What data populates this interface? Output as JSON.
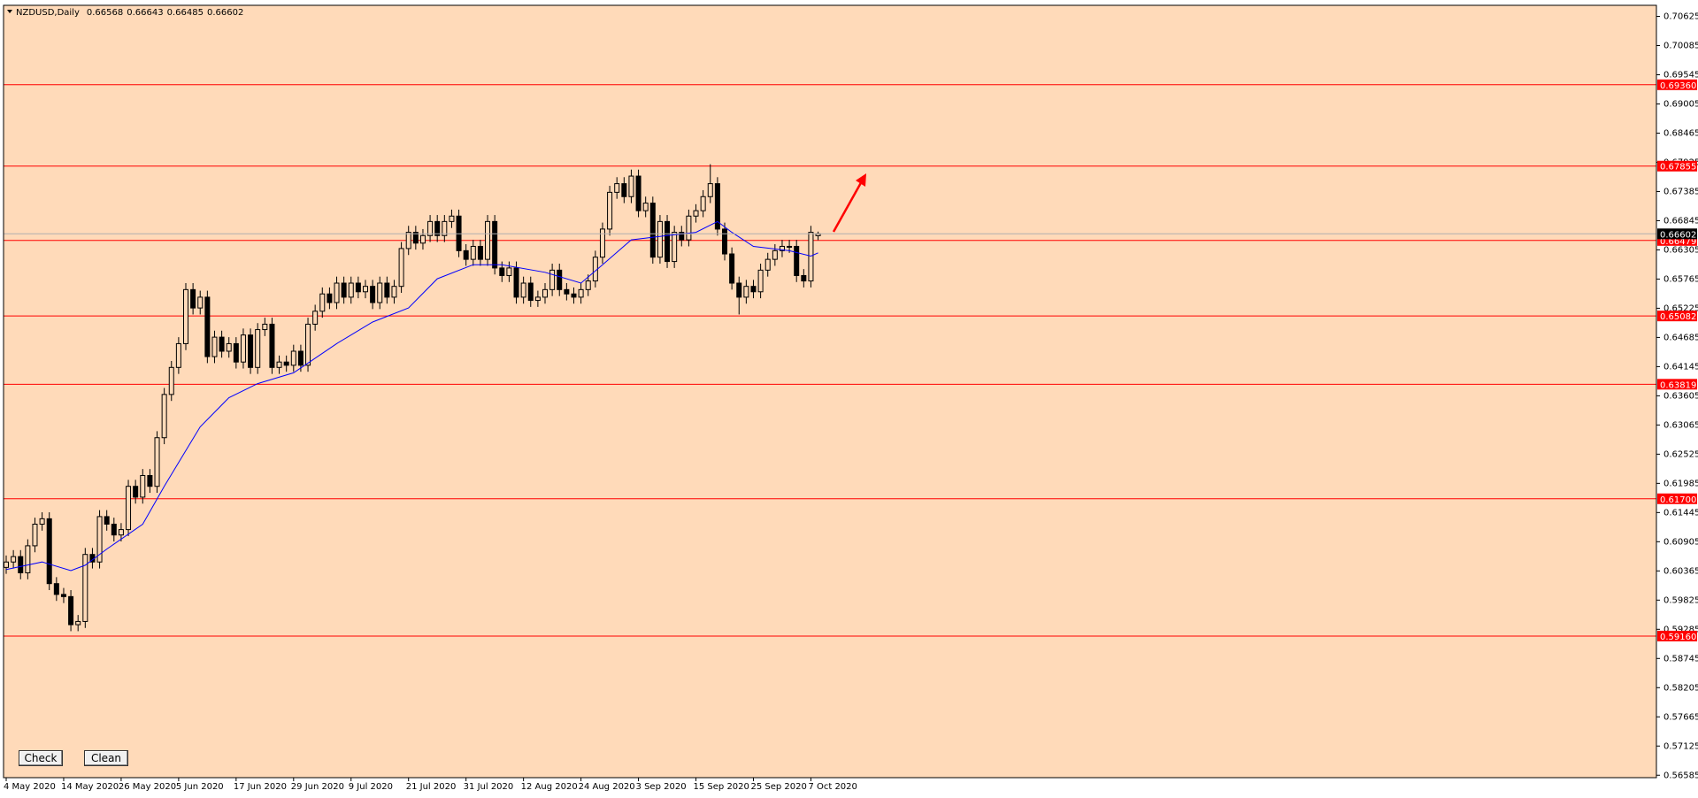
{
  "chart_data": {
    "type": "candlestick",
    "title": "NZDUSD,Daily",
    "categories": [
      "4 May 2020",
      null,
      null,
      null,
      null,
      null,
      null,
      null,
      "14 May 2020",
      null,
      null,
      null,
      null,
      null,
      null,
      null,
      "26 May 2020",
      null,
      null,
      null,
      null,
      null,
      null,
      null,
      "5 Jun 2020",
      null,
      null,
      null,
      null,
      null,
      null,
      null,
      "17 Jun 2020",
      null,
      null,
      null,
      null,
      null,
      null,
      null,
      "29 Jun 2020",
      null,
      null,
      null,
      null,
      null,
      null,
      null,
      "9 Jul 2020",
      null,
      null,
      null,
      null,
      null,
      null,
      null,
      "21 Jul 2020",
      null,
      null,
      null,
      null,
      null,
      null,
      null,
      "31 Jul 2020",
      null,
      null,
      null,
      null,
      null,
      null,
      null,
      "12 Aug 2020",
      null,
      null,
      null,
      null,
      null,
      null,
      null,
      "24 Aug 2020",
      null,
      null,
      null,
      null,
      null,
      null,
      null,
      "3 Sep 2020",
      null,
      null,
      null,
      null,
      null,
      null,
      null,
      "15 Sep 2020",
      null,
      null,
      null,
      null,
      null,
      null,
      null,
      "25 Sep 2020",
      null,
      null,
      null,
      null,
      null,
      null,
      null,
      "7 Oct 2020",
      null
    ],
    "open": [
      0.6043,
      0.6053,
      0.6063,
      0.6033,
      0.6083,
      0.6123,
      0.6133,
      0.6013,
      0.5993,
      0.5989,
      0.5937,
      0.5943,
      0.6067,
      0.6053,
      0.6137,
      0.6123,
      0.6103,
      0.6113,
      0.6193,
      0.6173,
      0.6213,
      0.6193,
      0.6283,
      0.6363,
      0.6413,
      0.6457,
      0.6557,
      0.6523,
      0.6543,
      0.6433,
      0.6469,
      0.6443,
      0.6457,
      0.6423,
      0.6473,
      0.6413,
      0.6483,
      0.6493,
      0.6413,
      0.6423,
      0.6417,
      0.6443,
      0.6417,
      0.6493,
      0.6517,
      0.6549,
      0.6533,
      0.6569,
      0.6543,
      0.6569,
      0.6553,
      0.6563,
      0.6533,
      0.6569,
      0.6543,
      0.6563,
      0.6633,
      0.6663,
      0.6643,
      0.6657,
      0.6683,
      0.6657,
      0.6683,
      0.6693,
      0.6629,
      0.6613,
      0.6637,
      0.6613,
      0.6683,
      0.6597,
      0.6583,
      0.6597,
      0.6543,
      0.6569,
      0.6537,
      0.6543,
      0.6557,
      0.6593,
      0.6557,
      0.6549,
      0.6543,
      0.6557,
      0.6573,
      0.6617,
      0.6669,
      0.6737,
      0.6753,
      0.6729,
      0.6767,
      0.6703,
      0.6717,
      0.6617,
      0.6683,
      0.6609,
      0.6663,
      0.6649,
      0.6693,
      0.6703,
      0.6729,
      0.6753,
      0.6669,
      0.6623,
      0.6569,
      0.6543,
      0.6563,
      0.6553,
      0.6593,
      0.6613,
      0.6629,
      0.6637,
      0.6637,
      0.6583,
      0.6573,
      0.66568
    ],
    "high": [
      0.6065,
      0.6075,
      0.6075,
      0.6095,
      0.6135,
      0.6145,
      0.6145,
      0.6025,
      0.6005,
      0.6001,
      0.5955,
      0.6079,
      0.6079,
      0.6149,
      0.6149,
      0.6135,
      0.6125,
      0.6205,
      0.6205,
      0.6225,
      0.6225,
      0.6295,
      0.6375,
      0.6425,
      0.6469,
      0.6569,
      0.6569,
      0.6555,
      0.6555,
      0.6481,
      0.6481,
      0.6469,
      0.6469,
      0.6485,
      0.6485,
      0.6495,
      0.6505,
      0.6505,
      0.6435,
      0.6435,
      0.6455,
      0.6455,
      0.6505,
      0.6529,
      0.6561,
      0.6561,
      0.6581,
      0.6581,
      0.6581,
      0.6581,
      0.6575,
      0.6575,
      0.6581,
      0.6581,
      0.6575,
      0.6645,
      0.6675,
      0.6675,
      0.6669,
      0.6695,
      0.6695,
      0.6695,
      0.6705,
      0.6705,
      0.6641,
      0.6649,
      0.6649,
      0.6695,
      0.6695,
      0.6609,
      0.6609,
      0.6609,
      0.6581,
      0.6581,
      0.6555,
      0.6569,
      0.6605,
      0.6605,
      0.6569,
      0.6561,
      0.6569,
      0.6585,
      0.6629,
      0.6681,
      0.6749,
      0.6765,
      0.6765,
      0.6779,
      0.6779,
      0.6729,
      0.6729,
      0.6695,
      0.6695,
      0.6675,
      0.6675,
      0.6705,
      0.6715,
      0.6741,
      0.6789,
      0.6765,
      0.6681,
      0.6635,
      0.6581,
      0.6575,
      0.6575,
      0.6605,
      0.6625,
      0.6641,
      0.6649,
      0.6649,
      0.6649,
      0.6595,
      0.6675,
      0.66643
    ],
    "low": [
      0.6031,
      0.6041,
      0.6021,
      0.6021,
      0.6071,
      0.6111,
      0.6001,
      0.5981,
      0.5977,
      0.5925,
      0.5925,
      0.5931,
      0.6041,
      0.6041,
      0.6111,
      0.6091,
      0.6091,
      0.6101,
      0.6161,
      0.6161,
      0.6181,
      0.6181,
      0.6271,
      0.6351,
      0.6401,
      0.6445,
      0.6511,
      0.6511,
      0.6421,
      0.6421,
      0.6431,
      0.6431,
      0.6411,
      0.6411,
      0.6401,
      0.6401,
      0.6471,
      0.6401,
      0.6401,
      0.6405,
      0.6405,
      0.6405,
      0.6405,
      0.6481,
      0.6505,
      0.6521,
      0.6521,
      0.6531,
      0.6531,
      0.6541,
      0.6541,
      0.6521,
      0.6521,
      0.6531,
      0.6531,
      0.6551,
      0.6621,
      0.6631,
      0.6631,
      0.6645,
      0.6645,
      0.6645,
      0.6671,
      0.6617,
      0.6601,
      0.6601,
      0.6601,
      0.6601,
      0.6585,
      0.6571,
      0.6571,
      0.6531,
      0.6531,
      0.6525,
      0.6525,
      0.6531,
      0.6545,
      0.6545,
      0.6537,
      0.6531,
      0.6531,
      0.6545,
      0.6561,
      0.6605,
      0.6657,
      0.6725,
      0.6717,
      0.6717,
      0.6691,
      0.6691,
      0.6605,
      0.6605,
      0.6597,
      0.6597,
      0.6637,
      0.6637,
      0.6681,
      0.6691,
      0.6717,
      0.6657,
      0.6611,
      0.6557,
      0.6511,
      0.6531,
      0.6541,
      0.6541,
      0.6581,
      0.6601,
      0.6617,
      0.6625,
      0.6571,
      0.6561,
      0.6561,
      0.66485
    ],
    "close": [
      0.6053,
      0.6063,
      0.6033,
      0.6083,
      0.6123,
      0.6133,
      0.6013,
      0.5993,
      0.5989,
      0.5937,
      0.5943,
      0.6067,
      0.6053,
      0.6137,
      0.6123,
      0.6103,
      0.6113,
      0.6193,
      0.6173,
      0.6213,
      0.6193,
      0.6283,
      0.6363,
      0.6413,
      0.6457,
      0.6557,
      0.6523,
      0.6543,
      0.6433,
      0.6469,
      0.6443,
      0.6457,
      0.6423,
      0.6473,
      0.6413,
      0.6483,
      0.6493,
      0.6413,
      0.6423,
      0.6417,
      0.6443,
      0.6417,
      0.6493,
      0.6517,
      0.6549,
      0.6533,
      0.6569,
      0.6543,
      0.6569,
      0.6553,
      0.6563,
      0.6533,
      0.6569,
      0.6543,
      0.6563,
      0.6633,
      0.6663,
      0.6643,
      0.6657,
      0.6683,
      0.6657,
      0.6683,
      0.6693,
      0.6629,
      0.6613,
      0.6637,
      0.6613,
      0.6683,
      0.6597,
      0.6583,
      0.6597,
      0.6543,
      0.6569,
      0.6537,
      0.6543,
      0.6557,
      0.6593,
      0.6557,
      0.6549,
      0.6543,
      0.6557,
      0.6573,
      0.6617,
      0.6669,
      0.6737,
      0.6753,
      0.6729,
      0.6767,
      0.6703,
      0.6717,
      0.6617,
      0.6683,
      0.6609,
      0.6663,
      0.6649,
      0.6693,
      0.6703,
      0.6729,
      0.6753,
      0.6669,
      0.6623,
      0.6569,
      0.6543,
      0.6563,
      0.6553,
      0.6593,
      0.6613,
      0.6629,
      0.6637,
      0.6637,
      0.6583,
      0.6573,
      0.6663,
      0.66602
    ],
    "up_color": "#ffdab9",
    "down_color": "#000000",
    "ma": {
      "color": "#0000ff",
      "x": [
        0,
        5,
        9,
        11,
        14,
        19,
        22,
        27,
        31,
        35,
        40,
        46,
        51,
        56,
        60,
        65,
        69,
        75,
        80,
        83,
        87,
        92,
        96,
        99,
        101,
        104,
        109,
        112,
        113
      ],
      "values": [
        0.6039,
        0.6053,
        0.6037,
        0.6047,
        0.6077,
        0.6123,
        0.6193,
        0.6303,
        0.6357,
        0.6383,
        0.6403,
        0.6457,
        0.6497,
        0.6523,
        0.6577,
        0.6603,
        0.6603,
        0.6589,
        0.6569,
        0.6603,
        0.6649,
        0.6657,
        0.6663,
        0.6683,
        0.6663,
        0.6637,
        0.6629,
        0.6619,
        0.6625
      ]
    },
    "levels": [
      {
        "value": 0.6936,
        "label": "0.69360"
      },
      {
        "value": 0.67855,
        "label": "0.67855"
      },
      {
        "value": 0.66479,
        "label": "0.66479"
      },
      {
        "value": 0.65082,
        "label": "0.65082"
      },
      {
        "value": 0.63819,
        "label": "0.63819"
      },
      {
        "value": 0.617,
        "label": "0.61700"
      },
      {
        "value": 0.5916,
        "label": "0.59160"
      }
    ],
    "level_color": "#ff0000",
    "ylim": [
      0.5654,
      0.7083
    ],
    "yticks": [
      0.70625,
      0.70085,
      0.69545,
      0.69005,
      0.68465,
      0.67925,
      0.67385,
      0.66845,
      0.66305,
      0.65765,
      0.65225,
      0.64685,
      0.64145,
      0.63605,
      0.63065,
      0.62525,
      0.61985,
      0.61445,
      0.60905,
      0.60365,
      0.59825,
      0.59285,
      0.58745,
      0.58205,
      0.57665,
      0.57125,
      0.56585
    ],
    "background": "#ffdab9"
  },
  "buttons": [
    "Check",
    "Clean"
  ]
}
